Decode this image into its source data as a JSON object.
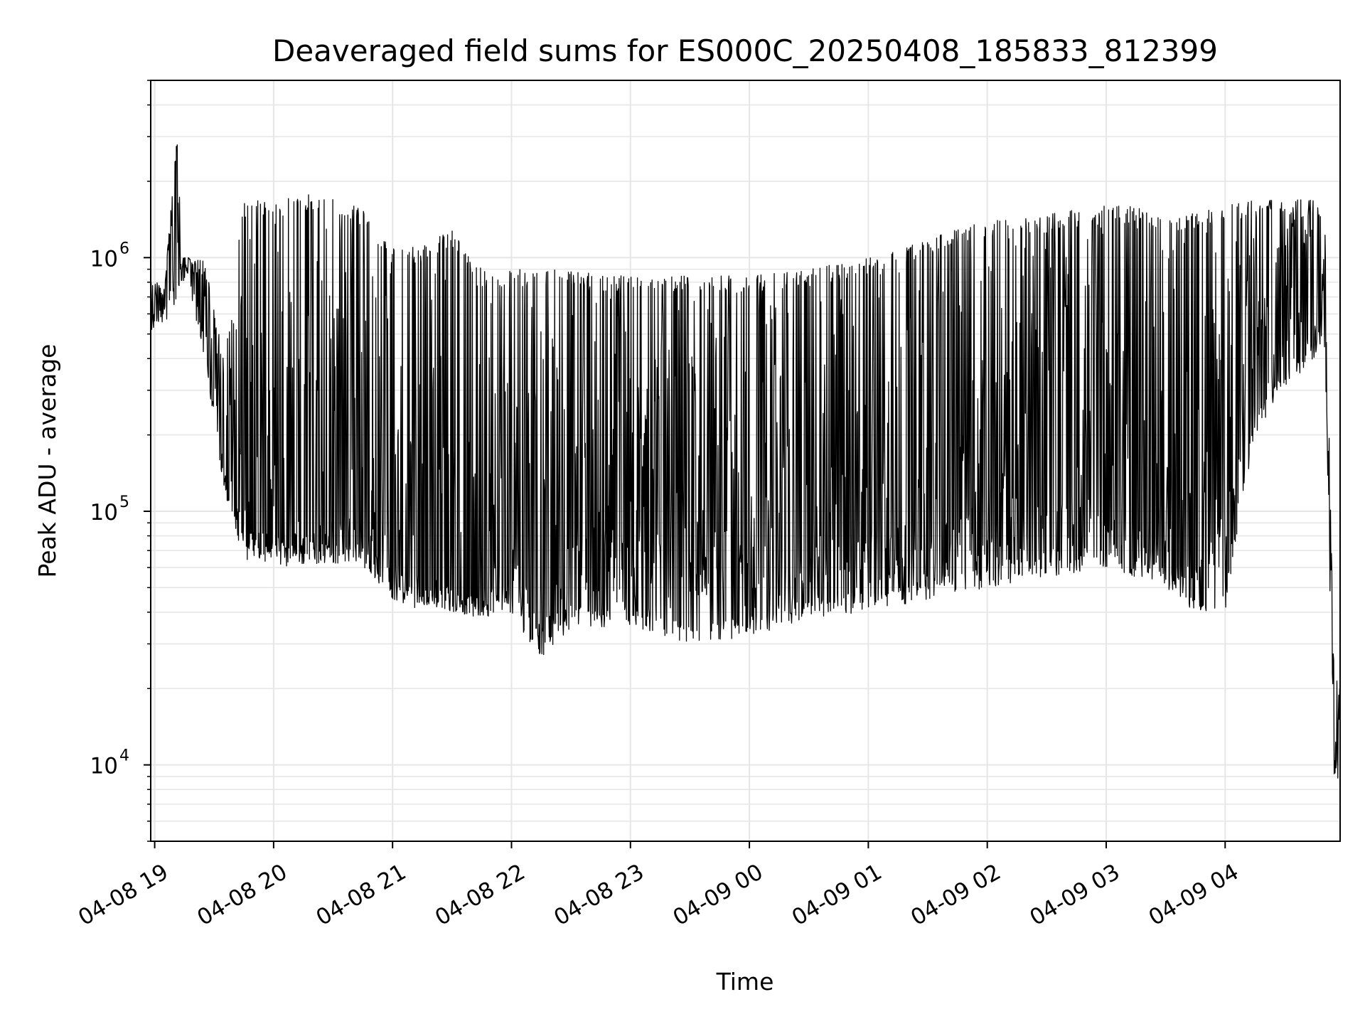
{
  "chart_data": {
    "type": "line",
    "title": "Deaveraged field sums for ES000C_20250408_185833_812399",
    "xlabel": "Time",
    "ylabel": "Peak ADU - average",
    "yscale": "log",
    "ylim": [
      5000,
      5000000
    ],
    "xlim": [
      "04-08 18:58",
      "04-09 04:58"
    ],
    "grid": true,
    "line_color": "#000000",
    "grid_color": "#e6e6e6",
    "x_ticks": [
      {
        "label": "04-08 19",
        "hours": 0
      },
      {
        "label": "04-08 20",
        "hours": 1
      },
      {
        "label": "04-08 21",
        "hours": 2
      },
      {
        "label": "04-08 22",
        "hours": 3
      },
      {
        "label": "04-08 23",
        "hours": 4
      },
      {
        "label": "04-09 00",
        "hours": 5
      },
      {
        "label": "04-09 01",
        "hours": 6
      },
      {
        "label": "04-09 02",
        "hours": 7
      },
      {
        "label": "04-09 03",
        "hours": 8
      },
      {
        "label": "04-09 04",
        "hours": 9
      }
    ],
    "y_ticks": [
      {
        "base": "10",
        "exp": "4",
        "value": 10000
      },
      {
        "base": "10",
        "exp": "5",
        "value": 100000
      },
      {
        "base": "10",
        "exp": "6",
        "value": 1000000
      }
    ],
    "series": [
      {
        "x": [
          "04-08 18:58",
          "04-08 19:05",
          "04-08 19:12",
          "04-08 19:13",
          "04-08 19:17",
          "04-08 19:25",
          "04-08 19:35",
          "04-08 19:45",
          "04-08 20:00",
          "04-08 20:15",
          "04-08 20:30",
          "04-08 20:45",
          "04-08 21:00",
          "04-08 21:15",
          "04-08 21:30",
          "04-08 21:45",
          "04-08 22:00",
          "04-08 22:15",
          "04-08 22:30",
          "04-08 22:45",
          "04-08 23:00",
          "04-08 23:30",
          "04-09 00:00",
          "04-09 00:30",
          "04-09 01:00",
          "04-09 01:30",
          "04-09 02:00",
          "04-09 02:30",
          "04-09 03:00",
          "04-09 03:15",
          "04-09 03:30",
          "04-09 03:45",
          "04-09 04:00",
          "04-09 04:15",
          "04-09 04:30",
          "04-09 04:45",
          "04-09 04:50",
          "04-09 04:55",
          "04-09 04:58"
        ],
        "y": [
          600000,
          700000,
          3500000,
          900000,
          1000000,
          700000,
          150000,
          90000,
          80000,
          85000,
          80000,
          90000,
          60000,
          55000,
          50000,
          45000,
          80000,
          35000,
          80000,
          90000,
          80000,
          90000,
          75000,
          80000,
          85000,
          90000,
          110000,
          120000,
          110000,
          100000,
          80000,
          60000,
          100000,
          400000,
          500000,
          1400000,
          800000,
          12000,
          15000
        ],
        "max": [
          800000,
          800000,
          3500000,
          1000000,
          1000000,
          1000000,
          400000,
          1700000,
          1700000,
          1800000,
          1700000,
          1600000,
          1100000,
          1100000,
          1300000,
          900000,
          900000,
          900000,
          900000,
          850000,
          850000,
          850000,
          850000,
          900000,
          1000000,
          1200000,
          1400000,
          1500000,
          1600000,
          1600000,
          1400000,
          1500000,
          1600000,
          1700000,
          1700000,
          1700000,
          1700000,
          25000,
          20000
        ],
        "min": [
          500000,
          550000,
          700000,
          800000,
          800000,
          400000,
          120000,
          65000,
          60000,
          62000,
          62000,
          60000,
          45000,
          40000,
          40000,
          38000,
          40000,
          25000,
          35000,
          35000,
          35000,
          30000,
          32000,
          38000,
          40000,
          45000,
          50000,
          55000,
          60000,
          55000,
          50000,
          40000,
          40000,
          200000,
          300000,
          400000,
          500000,
          9000,
          7000
        ]
      }
    ]
  }
}
